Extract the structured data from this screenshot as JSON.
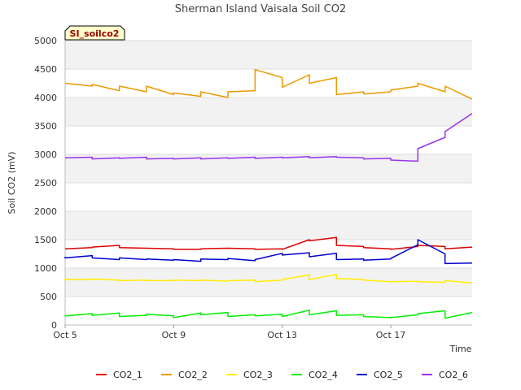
{
  "chart_data": {
    "type": "line",
    "title": "Sherman Island Vaisala Soil CO2",
    "badge": "SI_soilco2",
    "xlabel": "Time",
    "ylabel": "Soil CO2 (mV)",
    "ylim": [
      0,
      5000
    ],
    "yticks": [
      0,
      500,
      1000,
      1500,
      2000,
      2500,
      3000,
      3500,
      4000,
      4500,
      5000
    ],
    "xlim": [
      "2023-10-05",
      "2023-10-20"
    ],
    "xticks": [
      {
        "label": "Oct 5",
        "x": "2023-10-05"
      },
      {
        "label": "Oct 9",
        "x": "2023-10-09"
      },
      {
        "label": "Oct 13",
        "x": "2023-10-13"
      },
      {
        "label": "Oct 17",
        "x": "2023-10-17"
      }
    ],
    "grid": "horizontal",
    "legend_position": "bottom",
    "x": [
      "2023-10-05",
      "2023-10-05",
      "2023-10-06",
      "2023-10-06",
      "2023-10-07",
      "2023-10-07",
      "2023-10-08",
      "2023-10-08",
      "2023-10-09",
      "2023-10-09",
      "2023-10-10",
      "2023-10-10",
      "2023-10-11",
      "2023-10-11",
      "2023-10-12",
      "2023-10-12",
      "2023-10-13",
      "2023-10-13",
      "2023-10-14",
      "2023-10-14",
      "2023-10-15",
      "2023-10-15",
      "2023-10-16",
      "2023-10-16",
      "2023-10-17",
      "2023-10-17",
      "2023-10-18",
      "2023-10-18",
      "2023-10-19",
      "2023-10-19",
      "2023-10-20"
    ],
    "series": [
      {
        "name": "CO2_1",
        "color": "#dd0000",
        "values": [
          1340,
          1340,
          1360,
          1370,
          1400,
          1360,
          1350,
          1350,
          1340,
          1330,
          1330,
          1340,
          1350,
          1350,
          1340,
          1330,
          1340,
          1330,
          1500,
          1480,
          1540,
          1400,
          1380,
          1360,
          1340,
          1330,
          1380,
          1400,
          1380,
          1340,
          1370
        ]
      },
      {
        "name": "CO2_2",
        "color": "#ee9900",
        "values": [
          4250,
          4250,
          4200,
          4230,
          4120,
          4200,
          4100,
          4200,
          4050,
          4080,
          4020,
          4100,
          4000,
          4100,
          4120,
          4490,
          4350,
          4180,
          4400,
          4250,
          4350,
          4050,
          4100,
          4060,
          4100,
          4130,
          4200,
          4250,
          4100,
          4200,
          3970
        ]
      },
      {
        "name": "CO2_3",
        "color": "#ffee00",
        "values": [
          820,
          800,
          800,
          810,
          790,
          780,
          790,
          780,
          780,
          790,
          780,
          790,
          770,
          780,
          790,
          760,
          790,
          800,
          880,
          800,
          890,
          820,
          800,
          790,
          760,
          760,
          770,
          760,
          750,
          780,
          740
        ]
      },
      {
        "name": "CO2_4",
        "color": "#00ee00",
        "values": [
          150,
          160,
          200,
          170,
          210,
          150,
          170,
          190,
          160,
          130,
          210,
          180,
          220,
          150,
          180,
          160,
          190,
          150,
          260,
          180,
          250,
          170,
          180,
          150,
          130,
          130,
          180,
          200,
          250,
          120,
          220
        ]
      },
      {
        "name": "CO2_5",
        "color": "#0000cc",
        "values": [
          1200,
          1180,
          1220,
          1180,
          1150,
          1180,
          1150,
          1160,
          1140,
          1150,
          1120,
          1160,
          1150,
          1170,
          1130,
          1150,
          1260,
          1230,
          1270,
          1200,
          1260,
          1150,
          1160,
          1140,
          1160,
          1170,
          1410,
          1500,
          1250,
          1080,
          1090
        ]
      },
      {
        "name": "CO2_6",
        "color": "#9933ee",
        "values": [
          2940,
          2940,
          2950,
          2920,
          2940,
          2930,
          2950,
          2920,
          2930,
          2920,
          2940,
          2920,
          2940,
          2930,
          2950,
          2930,
          2950,
          2940,
          2960,
          2940,
          2960,
          2950,
          2940,
          2920,
          2930,
          2900,
          2880,
          3100,
          3300,
          3400,
          3720
        ]
      }
    ]
  }
}
